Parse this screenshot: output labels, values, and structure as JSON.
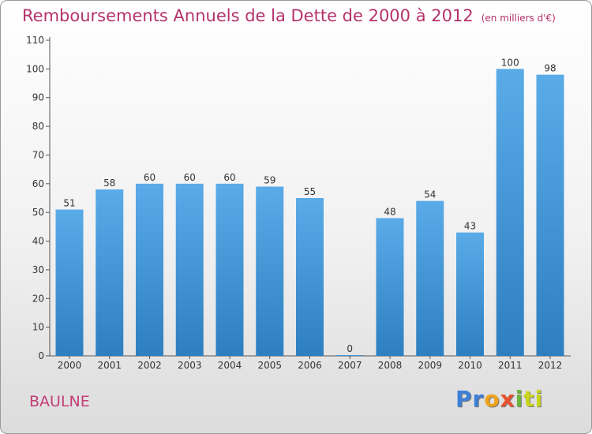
{
  "title": "Remboursements Annuels de la Dette de 2000 à 2012",
  "unit": "(en milliers d'€)",
  "commune": "BAULNE",
  "logo": [
    "Pr",
    "o",
    "x",
    "i",
    "ti"
  ],
  "colors": {
    "bar_top": "#5aabe8",
    "bar_bottom": "#2d7fc0",
    "title": "#b5326b"
  },
  "chart_data": {
    "type": "bar",
    "title": "Remboursements Annuels de la Dette de 2000 à 2012",
    "xlabel": "",
    "ylabel": "",
    "categories": [
      "2000",
      "2001",
      "2002",
      "2003",
      "2004",
      "2005",
      "2006",
      "2007",
      "2008",
      "2009",
      "2010",
      "2011",
      "2012"
    ],
    "values": [
      51,
      58,
      60,
      60,
      60,
      59,
      55,
      0,
      48,
      54,
      43,
      100,
      98
    ],
    "ylim": [
      0,
      110
    ],
    "yticks": [
      0,
      10,
      20,
      30,
      40,
      50,
      60,
      70,
      80,
      90,
      100,
      110
    ],
    "grid": false,
    "legend": "none"
  }
}
